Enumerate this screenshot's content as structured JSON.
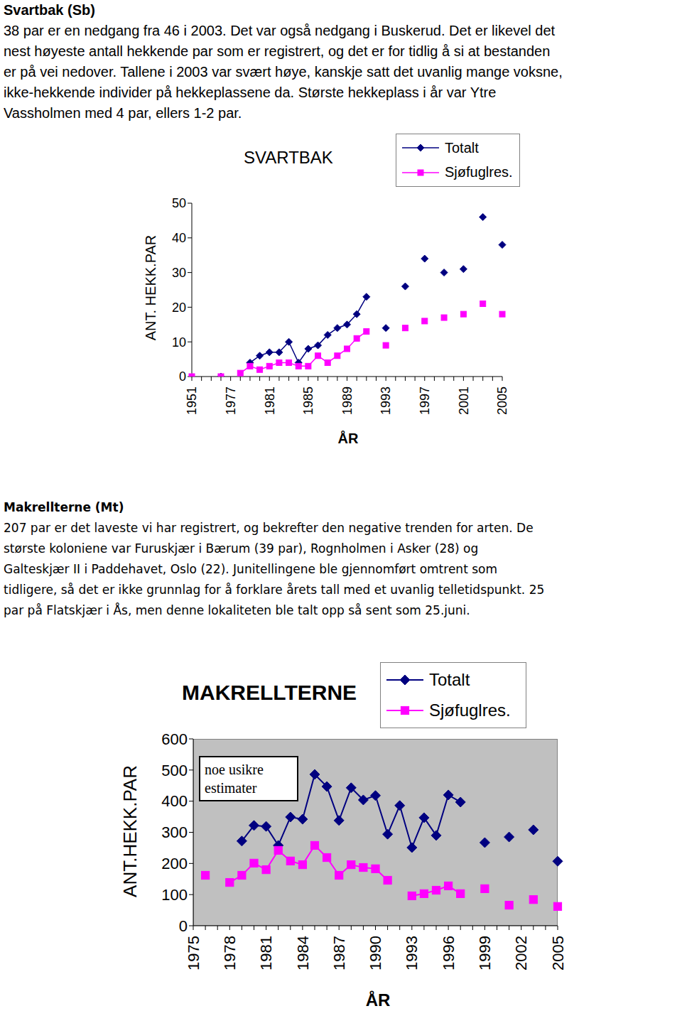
{
  "sections": [
    {
      "heading": "Svartbak (Sb)",
      "lines": [
        "38 par er en nedgang fra 46 i 2003. Det var også nedgang i Buskerud. Det er likevel det",
        "nest høyeste antall hekkende par som er registrert, og det er for tidlig å si at bestanden",
        "er på vei nedover. Tallene i 2003 var svært høye, kanskje satt det uvanlig mange voksne,",
        "ikke-hekkende individer på hekkeplassene da. Største hekkeplass i år var Ytre",
        "Vassholmen med 4 par, ellers 1-2 par."
      ]
    },
    {
      "heading": "Makrellterne (Mt)",
      "lines": [
        "207 par er det laveste vi har registrert, og bekrefter den negative trenden for arten. De",
        "største koloniene var Furuskjær i Bærum (39 par), Rognholmen i Asker (28) og",
        "Galteskjær II i Paddehavet, Oslo (22). Junitellingene ble gjennomført omtrent som",
        "tidligere, så det er ikke grunnlag for å forklare årets tall med et uvanlig telletidspunkt. 25",
        "par på Flatskjær i Ås, men denne lokaliteten ble talt opp så sent som 25.juni."
      ]
    }
  ],
  "chart_data": [
    {
      "type": "line",
      "title": "SVARTBAK",
      "x_label": "ÅR",
      "y_label": "ANT. HEKK.PAR",
      "categories": [
        "1951",
        null,
        null,
        null,
        "1977",
        null,
        null,
        null,
        "1981",
        null,
        null,
        null,
        "1985",
        null,
        null,
        null,
        "1989",
        null,
        null,
        null,
        "1993",
        null,
        null,
        null,
        "1997",
        null,
        null,
        null,
        "2001",
        null,
        null,
        null,
        "2005"
      ],
      "series": [
        {
          "name": "Totalt",
          "color": "#000080",
          "marker": "diamond",
          "values": [
            null,
            null,
            null,
            0,
            null,
            null,
            4,
            6,
            7,
            7,
            10,
            4,
            8,
            9,
            12,
            14,
            15,
            18,
            23,
            null,
            14,
            null,
            26,
            null,
            34,
            null,
            30,
            null,
            31,
            null,
            46,
            null,
            38
          ]
        },
        {
          "name": "Sjøfuglres.",
          "color": "#ff00ff",
          "marker": "square",
          "values": [
            0,
            null,
            null,
            0,
            null,
            1,
            3,
            2,
            3,
            4,
            4,
            3,
            3,
            6,
            4,
            6,
            8,
            11,
            13,
            null,
            9,
            null,
            14,
            null,
            16,
            null,
            17,
            null,
            18,
            null,
            21,
            null,
            18
          ]
        }
      ],
      "ylim": [
        0,
        50
      ],
      "yticks": [
        0,
        10,
        20,
        30,
        40,
        50
      ],
      "grid": false,
      "legend": "upper right"
    },
    {
      "type": "line",
      "title": "MAKRELLTERNE",
      "x_label": "ÅR",
      "y_label": "ANT.HEKK.PAR",
      "annotations": [
        "noe usikre estimater"
      ],
      "categories": [
        "1975",
        null,
        null,
        "1978",
        null,
        null,
        "1981",
        null,
        null,
        "1984",
        null,
        null,
        "1987",
        null,
        null,
        "1990",
        null,
        null,
        "1993",
        null,
        null,
        "1996",
        null,
        null,
        "1999",
        null,
        null,
        "2002",
        null,
        null,
        "2005"
      ],
      "series": [
        {
          "name": "Totalt",
          "color": "#000080",
          "marker": "diamond",
          "values": [
            null,
            null,
            null,
            null,
            272,
            322,
            319,
            258,
            349,
            342,
            486,
            447,
            338,
            443,
            404,
            418,
            294,
            386,
            251,
            347,
            290,
            420,
            397,
            null,
            267,
            null,
            285,
            null,
            308,
            null,
            207
          ]
        },
        {
          "name": "Sjøfuglres.",
          "color": "#ff00ff",
          "marker": "square",
          "values": [
            null,
            162,
            null,
            139,
            162,
            201,
            180,
            242,
            208,
            196,
            258,
            219,
            162,
            196,
            187,
            183,
            146,
            null,
            96,
            103,
            114,
            128,
            103,
            null,
            119,
            null,
            66,
            null,
            84,
            null,
            62
          ]
        }
      ],
      "ylim": [
        0,
        600
      ],
      "yticks": [
        0,
        100,
        200,
        300,
        400,
        500,
        600
      ],
      "grid": false,
      "legend": "upper right"
    }
  ]
}
